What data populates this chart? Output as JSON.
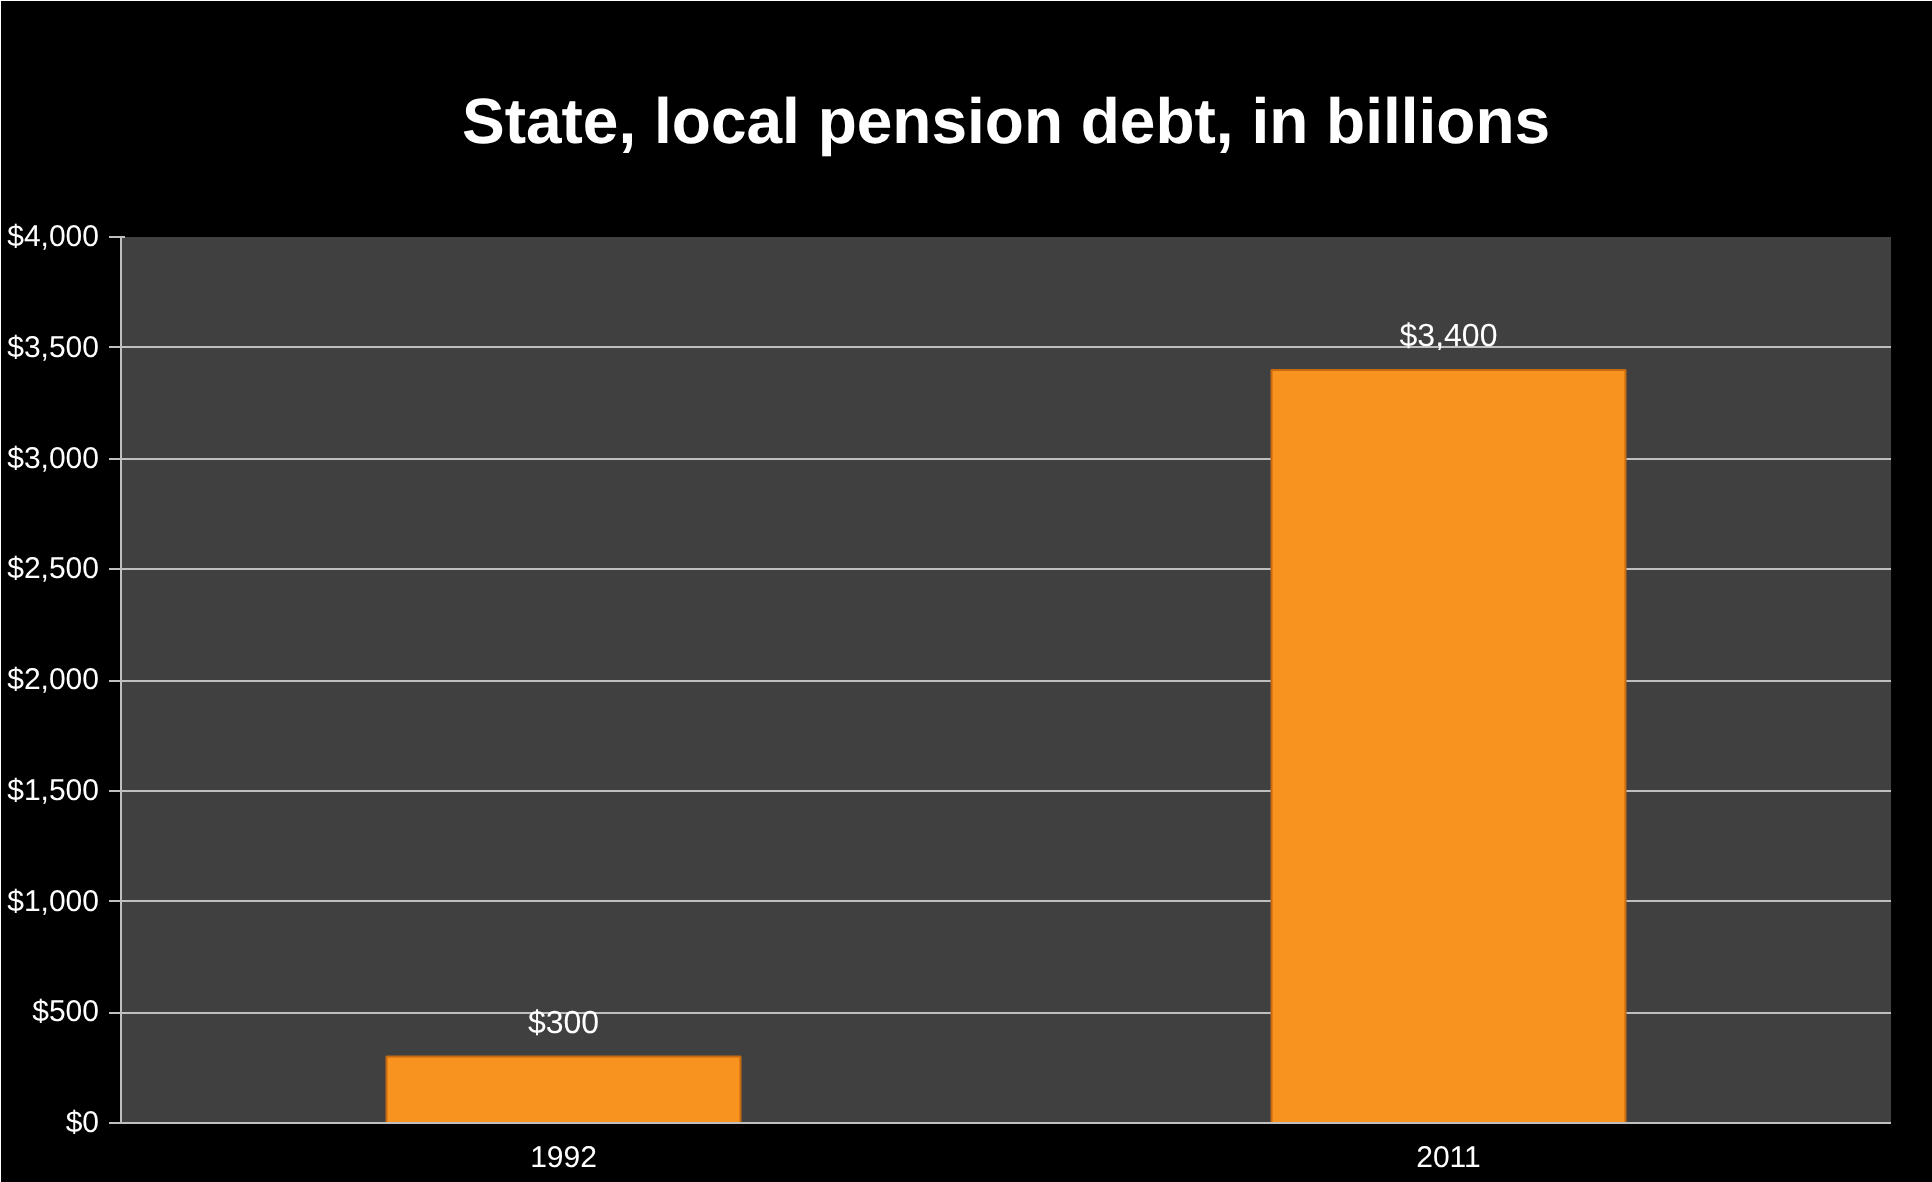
{
  "chart_data": {
    "type": "bar",
    "title": "State, local pension debt, in billions",
    "categories": [
      "1992",
      "2011"
    ],
    "values": [
      300,
      3400
    ],
    "color": "#f7931e",
    "value_labels": [
      "$300",
      "$3,400"
    ],
    "ylim": [
      0,
      4000
    ],
    "yticks": [
      {
        "value": 0,
        "label": "$0"
      },
      {
        "value": 500,
        "label": "$500"
      },
      {
        "value": 1000,
        "label": "$1,000"
      },
      {
        "value": 1500,
        "label": "$1,500"
      },
      {
        "value": 2000,
        "label": "$2,000"
      },
      {
        "value": 2500,
        "label": "$2,500"
      },
      {
        "value": 3000,
        "label": "$3,000"
      },
      {
        "value": 3500,
        "label": "$3,500"
      },
      {
        "value": 4000,
        "label": "$4,000"
      }
    ],
    "grid": "y"
  }
}
